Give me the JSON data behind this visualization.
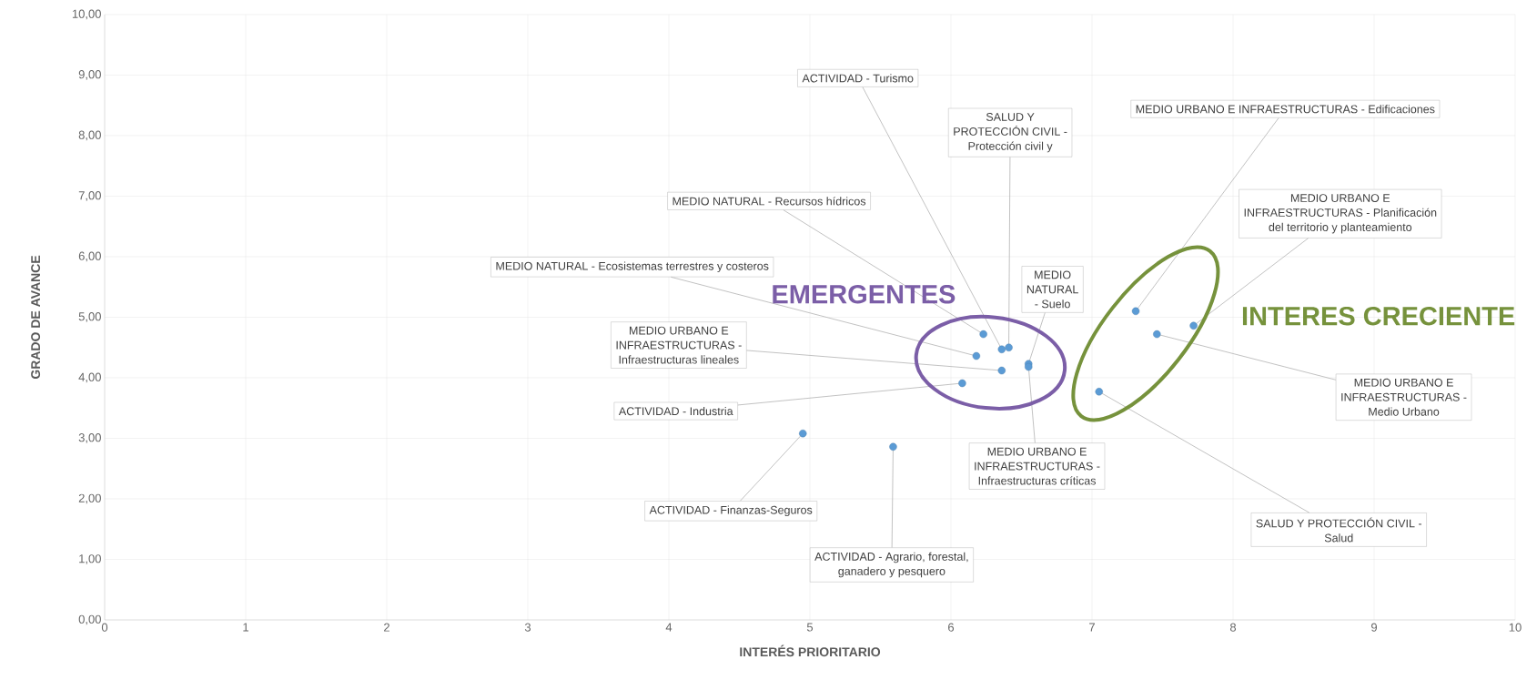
{
  "chart_data": {
    "type": "scatter",
    "xlabel": "INTERÉS PRIORITARIO",
    "ylabel": "GRADO DE AVANCE",
    "x": [
      6.36,
      6.41,
      6.23,
      6.18,
      6.36,
      6.08,
      4.95,
      5.59,
      6.55,
      6.55,
      7.31,
      7.72,
      7.46,
      7.05
    ],
    "series": [
      {
        "color": "#5b9bd5",
        "values": [
          4.47,
          4.5,
          4.72,
          4.36,
          4.12,
          3.91,
          3.08,
          2.86,
          4.23,
          4.18,
          5.1,
          4.86,
          4.72,
          3.77
        ]
      }
    ],
    "xlim": [
      0,
      10
    ],
    "xticks": [
      0,
      1,
      2,
      3,
      4,
      5,
      6,
      7,
      8,
      9,
      10
    ],
    "ylim": [
      0,
      10
    ],
    "yticks": [
      {
        "value": 0,
        "label": "0,00"
      },
      {
        "value": 1,
        "label": "1,00"
      },
      {
        "value": 2,
        "label": "2,00"
      },
      {
        "value": 3,
        "label": "3,00"
      },
      {
        "value": 4,
        "label": "4,00"
      },
      {
        "value": 5,
        "label": "5,00"
      },
      {
        "value": 6,
        "label": "6,00"
      },
      {
        "value": 7,
        "label": "7,00"
      },
      {
        "value": 8,
        "label": "8,00"
      },
      {
        "value": 9,
        "label": "9,00"
      },
      {
        "value": 10,
        "label": "10,00"
      }
    ],
    "grid": true,
    "marker": "circle",
    "annotations": [
      {
        "text": "ACTIVIDAD - Turismo",
        "x": 6.36,
        "y": 4.47
      },
      {
        "text": "SALUD Y PROTECCIÓN CIVIL - Protección civil y",
        "x": 6.41,
        "y": 4.5
      },
      {
        "text": "MEDIO NATURAL - Recursos hídricos",
        "x": 6.23,
        "y": 4.72
      },
      {
        "text": "MEDIO NATURAL - Ecosistemas terrestres y costeros",
        "x": 6.18,
        "y": 4.36
      },
      {
        "text": "MEDIO URBANO E INFRAESTRUCTURAS - Infraestructuras lineales",
        "x": 6.36,
        "y": 4.12
      },
      {
        "text": "ACTIVIDAD - Industria",
        "x": 6.08,
        "y": 3.91
      },
      {
        "text": "ACTIVIDAD - Finanzas-Seguros",
        "x": 4.95,
        "y": 3.08
      },
      {
        "text": "ACTIVIDAD - Agrario, forestal, ganadero y pesquero",
        "x": 5.59,
        "y": 2.86
      },
      {
        "text": "MEDIO NATURAL - Suelo",
        "x": 6.55,
        "y": 4.23
      },
      {
        "text": "MEDIO URBANO E INFRAESTRUCTURAS - Infraestructuras críticas",
        "x": 6.55,
        "y": 4.18
      },
      {
        "text": "MEDIO URBANO E INFRAESTRUCTURAS - Edificaciones",
        "x": 7.31,
        "y": 5.1
      },
      {
        "text": "MEDIO URBANO E INFRAESTRUCTURAS - Planificación del territorio y planteamiento",
        "x": 7.72,
        "y": 4.86
      },
      {
        "text": "MEDIO URBANO E INFRAESTRUCTURAS - Medio Urbano",
        "x": 7.46,
        "y": 4.72
      },
      {
        "text": "SALUD Y PROTECCIÓN CIVIL - Salud",
        "x": 7.05,
        "y": 3.77
      },
      "EMERGENTES",
      "INTERES CRECIENTE"
    ]
  }
}
